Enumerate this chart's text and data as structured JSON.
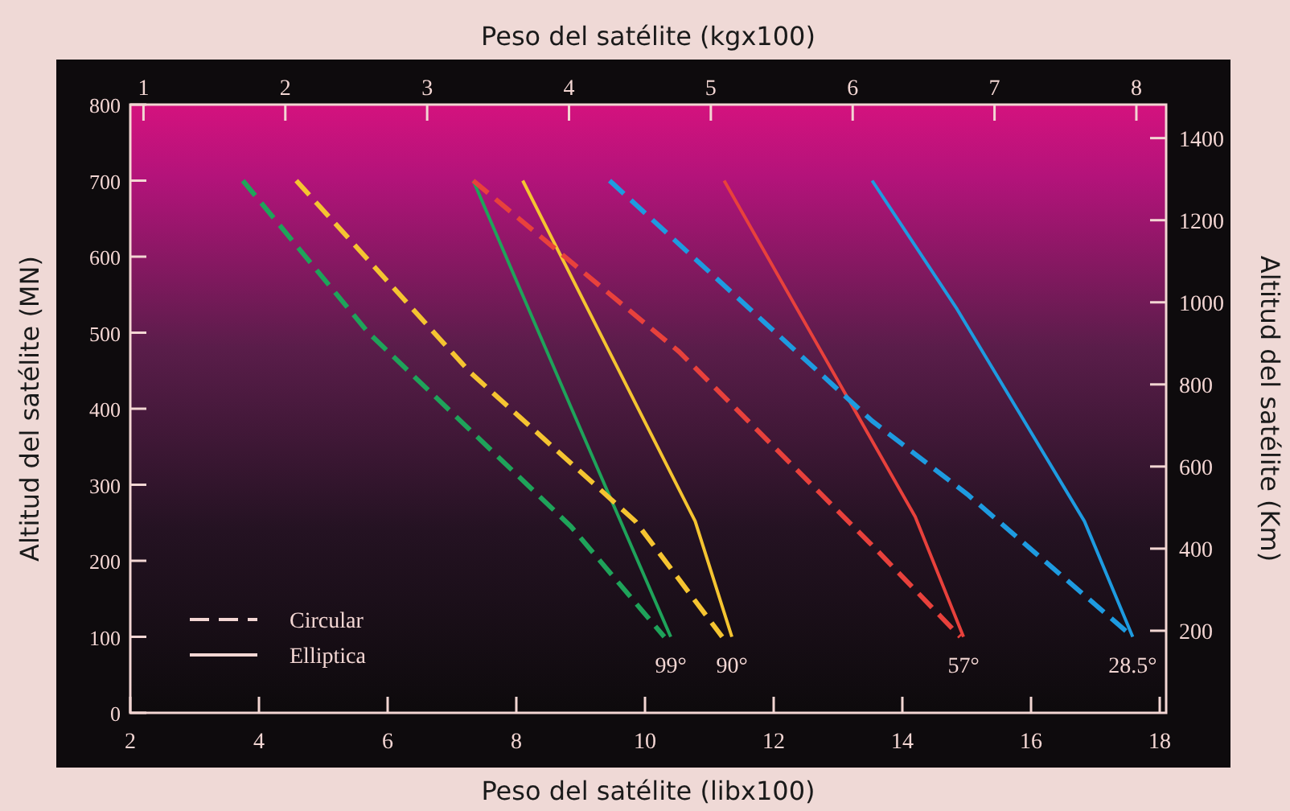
{
  "chart_data": {
    "type": "line",
    "xlabel": "Peso del satélite (libx100)",
    "x2label": "Peso del satélite (kgx100)",
    "ylabel": "Altitud del satélite (MN)",
    "y2label": "Altitud del satélite (Km)",
    "xlim": [
      2,
      18.1
    ],
    "xticks": [
      2,
      4,
      6,
      8,
      10,
      12,
      14,
      16,
      18
    ],
    "x2lim": [
      0.907,
      8.21
    ],
    "x2ticks": [
      1,
      2,
      3,
      4,
      5,
      6,
      7,
      8
    ],
    "ylim": [
      0,
      800
    ],
    "yticks": [
      0,
      100,
      200,
      300,
      400,
      500,
      600,
      700,
      800
    ],
    "y2lim": [
      0,
      1481.6
    ],
    "y2ticks": [
      200,
      400,
      600,
      800,
      1000,
      1200,
      1400
    ],
    "grid": false,
    "marker": "none",
    "series": [
      {
        "color": "#1fa35a",
        "line_style": "dashed",
        "x": [
          3.75,
          5.7,
          8.85,
          10.3
        ],
        "values": [
          700,
          500,
          245,
          100
        ]
      },
      {
        "color": "#1fa35a",
        "line_style": "solid",
        "x": [
          7.33,
          8.86,
          10.4
        ],
        "values": [
          700,
          400,
          100
        ]
      },
      {
        "color": "#f5c431",
        "line_style": "dashed",
        "x": [
          4.58,
          7.28,
          9.85,
          11.2
        ],
        "values": [
          700,
          448,
          252,
          100
        ]
      },
      {
        "color": "#f5c431",
        "line_style": "solid",
        "x": [
          8.1,
          10.78,
          11.35
        ],
        "values": [
          700,
          252,
          100
        ]
      },
      {
        "color": "#e8413c",
        "line_style": "dashed",
        "x": [
          7.33,
          10.53,
          13.5,
          14.9
        ],
        "values": [
          700,
          475,
          223,
          100
        ]
      },
      {
        "color": "#e8413c",
        "line_style": "solid",
        "x": [
          11.23,
          14.2,
          14.95
        ],
        "values": [
          700,
          258,
          100
        ]
      },
      {
        "color": "#1e9be0",
        "line_style": "dashed",
        "x": [
          9.45,
          13.53,
          15.03,
          17.58
        ],
        "values": [
          700,
          384,
          286,
          100
        ]
      },
      {
        "color": "#1e9be0",
        "line_style": "solid",
        "x": [
          13.53,
          14.85,
          16.83,
          17.58
        ],
        "values": [
          700,
          531,
          252,
          100
        ]
      }
    ],
    "annotations": [
      {
        "text": "99°",
        "x": 10.4,
        "y": 100
      },
      {
        "text": "90°",
        "x": 11.35,
        "y": 100
      },
      {
        "text": "57°",
        "x": 14.95,
        "y": 100
      },
      {
        "text": "28.5°",
        "x": 17.58,
        "y": 100
      },
      "Circular",
      "Elliptica"
    ]
  }
}
